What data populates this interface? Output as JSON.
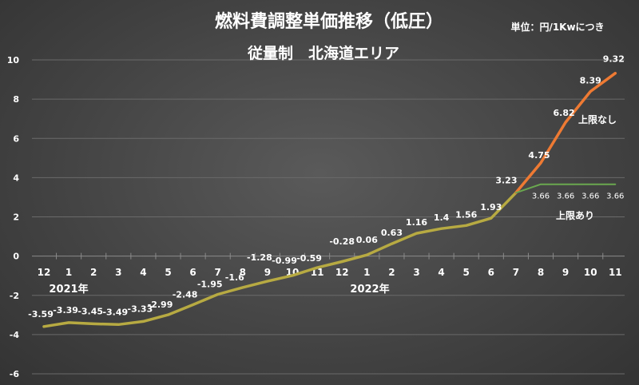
{
  "chart_data": {
    "type": "line",
    "title": "燃料費調整単価推移（低圧）",
    "subtitle": "従量制　北海道エリア",
    "unit_note": "単位：円/1Kwにつき",
    "categories": [
      "12",
      "1",
      "2",
      "3",
      "4",
      "5",
      "6",
      "7",
      "8",
      "9",
      "10",
      "11",
      "12",
      "1",
      "2",
      "3",
      "4",
      "5",
      "6",
      "7",
      "8",
      "9",
      "10",
      "11"
    ],
    "year_labels": [
      "2021年",
      "2022年"
    ],
    "ylim": [
      -6,
      10
    ],
    "yticks": [
      -6,
      -4,
      -2,
      0,
      2,
      4,
      6,
      8,
      10
    ],
    "grid": true,
    "series": [
      {
        "name": "",
        "color": "#b7aa42",
        "values": [
          -3.59,
          -3.39,
          -3.45,
          -3.49,
          -3.33,
          -2.99,
          -2.48,
          -1.95,
          -1.6,
          -1.28,
          -0.99,
          -0.59,
          -0.28,
          0.06,
          0.63,
          1.16,
          1.4,
          1.56,
          1.93,
          3.23,
          null,
          null,
          null,
          null
        ],
        "labels": [
          "-3.59",
          "-3.39",
          "-3.45",
          "-3.49",
          "-3.33",
          "-2.99",
          "-2.48",
          "-1.95",
          "-1.6",
          "-1.28",
          "-0.99",
          "-0.59",
          "-0.28",
          "0.06",
          "0.63",
          "1.16",
          "1.4",
          "1.56",
          "1.93",
          "3.23",
          "",
          "",
          "",
          ""
        ]
      },
      {
        "name": "上限なし",
        "color": "#ee7a33",
        "values": [
          null,
          null,
          null,
          null,
          null,
          null,
          null,
          null,
          null,
          null,
          null,
          null,
          null,
          null,
          null,
          null,
          null,
          null,
          null,
          3.23,
          4.75,
          6.82,
          8.39,
          9.32
        ],
        "labels": [
          "",
          "",
          "",
          "",
          "",
          "",
          "",
          "",
          "",
          "",
          "",
          "",
          "",
          "",
          "",
          "",
          "",
          "",
          "",
          "",
          "4.75",
          "6.82",
          "8.39",
          "9.32"
        ]
      },
      {
        "name": "上限あり",
        "color": "#6aa84f",
        "values": [
          null,
          null,
          null,
          null,
          null,
          null,
          null,
          null,
          null,
          null,
          null,
          null,
          null,
          null,
          null,
          null,
          null,
          null,
          null,
          3.23,
          3.66,
          3.66,
          3.66,
          3.66
        ],
        "labels": [
          "",
          "",
          "",
          "",
          "",
          "",
          "",
          "",
          "",
          "",
          "",
          "",
          "",
          "",
          "",
          "",
          "",
          "",
          "",
          "",
          "3.66",
          "3.66",
          "3.66",
          "3.66"
        ]
      }
    ]
  }
}
